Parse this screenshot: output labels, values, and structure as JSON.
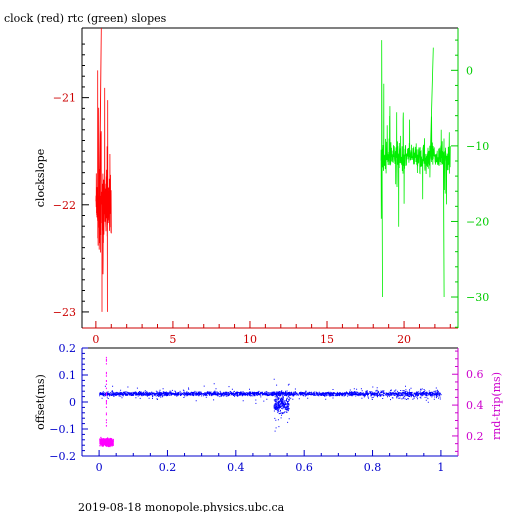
{
  "title": "clock (red) rtc (green) slopes",
  "footer": "2019-08-18  monopole.physics.ubc.ca",
  "chart_data": [
    {
      "type": "line",
      "title": "clock (red) rtc (green) slopes",
      "xlabel": "",
      "ylabel": "clockslope",
      "xlim": [
        -0.9,
        23.5
      ],
      "x_ticks": [
        0,
        5,
        10,
        15,
        20
      ],
      "left_axis": {
        "label": "clockslope",
        "ylim": [
          -23.15,
          -20.35
        ],
        "ticks": [
          -21,
          -22,
          -23
        ],
        "color": "#cc0000"
      },
      "right_axis": {
        "label": "",
        "ylim": [
          -34.1,
          5.6
        ],
        "ticks": [
          0,
          -10,
          -20,
          -30
        ],
        "color": "#00cc00"
      },
      "series": [
        {
          "axis": "left",
          "color": "#ff0000",
          "x_range": [
            0.0,
            1.0
          ],
          "y_center": -22.0,
          "y_min": -23.0,
          "y_max": -20.35
        },
        {
          "axis": "right",
          "color": "#00ee00",
          "x_range": [
            18.5,
            23.0
          ],
          "y_center": -11.5,
          "y_min": -30.0,
          "y_max": 4.0
        }
      ],
      "grid": false
    },
    {
      "type": "scatter",
      "xlabel": "",
      "xlim": [
        -0.05,
        1.05
      ],
      "x_ticks": [
        0,
        0.2,
        0.4,
        0.6,
        0.8,
        1
      ],
      "left_axis": {
        "label": "offset(ms)",
        "ylim": [
          -0.2,
          0.2
        ],
        "ticks": [
          0.2,
          0.1,
          0,
          -0.1,
          -0.2
        ],
        "color": "#0000cc"
      },
      "right_axis": {
        "label": "rnd-trip(ms)",
        "ylim": [
          0.07,
          0.77
        ],
        "ticks": [
          0.2,
          0.4,
          0.6
        ],
        "color": "#cc00cc"
      },
      "series": [
        {
          "axis": "left",
          "color": "#0000ff",
          "x_range": [
            0.0,
            1.0
          ],
          "y_center": 0.03,
          "y_spread": 0.012,
          "features": [
            {
              "x": 0.53,
              "y_min": -0.17,
              "y_max": 0.17
            },
            {
              "x": 0.81,
              "y_min": -0.02,
              "y_max": 0.07
            }
          ]
        },
        {
          "axis": "right",
          "color": "#ff00ff",
          "x_range": [
            0.0,
            0.04
          ],
          "y_center": 0.16,
          "y_spread": 0.04,
          "spike": {
            "x": 0.02,
            "y": 0.72
          }
        }
      ],
      "grid": false
    }
  ]
}
